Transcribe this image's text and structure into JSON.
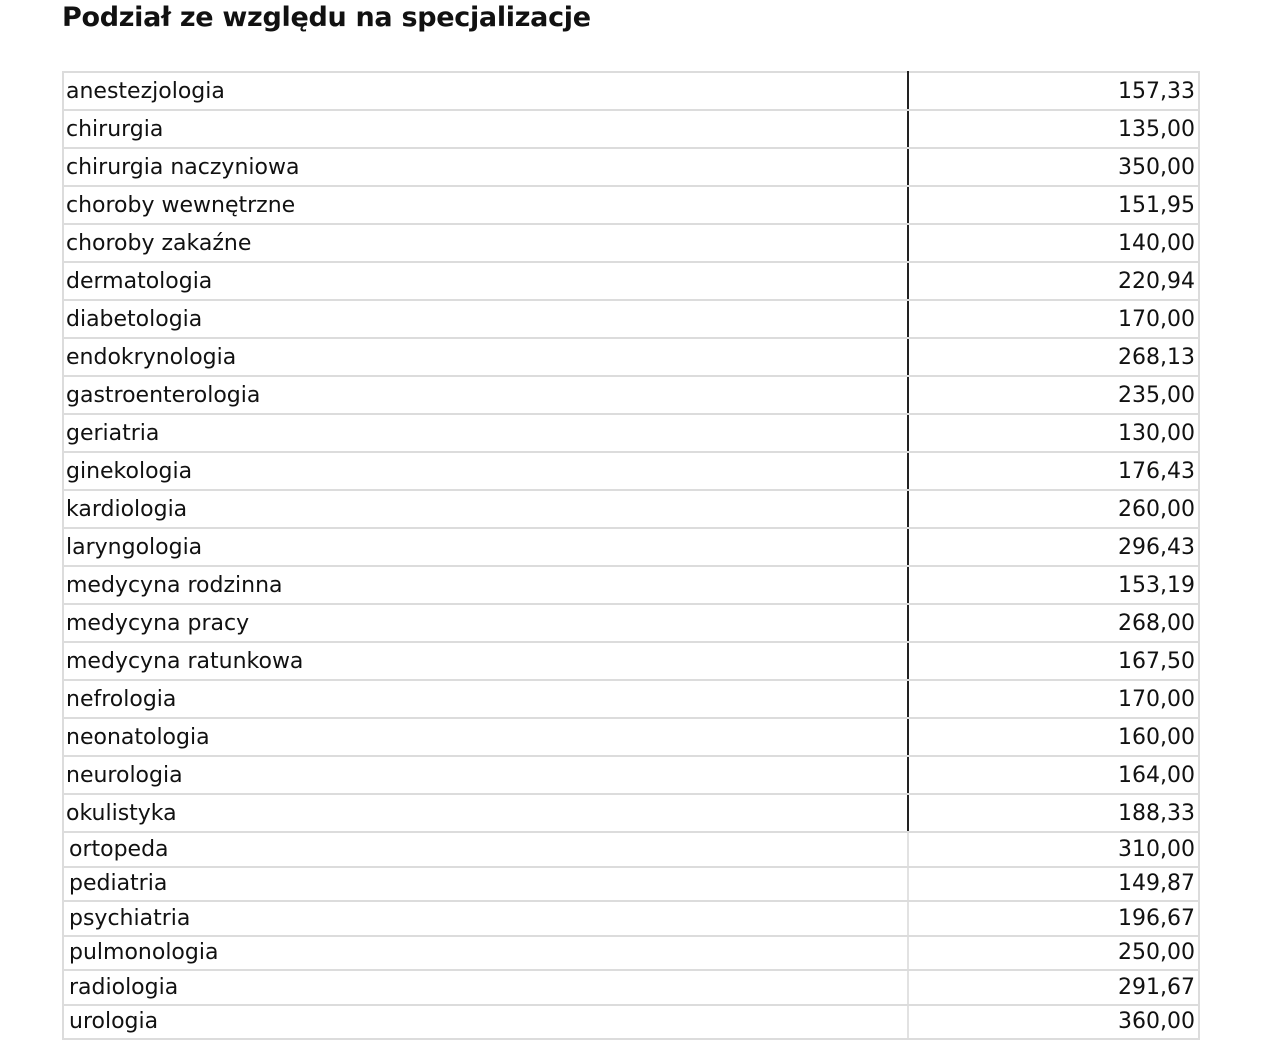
{
  "title": "Podział ze względu na specjalizacje",
  "rows": [
    {
      "name": "anestezjologia",
      "value": "157,33"
    },
    {
      "name": "chirurgia",
      "value": "135,00"
    },
    {
      "name": "chirurgia naczyniowa",
      "value": "350,00"
    },
    {
      "name": "choroby wewnętrzne",
      "value": "151,95"
    },
    {
      "name": "choroby zakaźne",
      "value": "140,00"
    },
    {
      "name": "dermatologia",
      "value": "220,94"
    },
    {
      "name": "diabetologia",
      "value": "170,00"
    },
    {
      "name": "endokrynologia",
      "value": "268,13"
    },
    {
      "name": "gastroenterologia",
      "value": "235,00"
    },
    {
      "name": "geriatria",
      "value": "130,00"
    },
    {
      "name": "ginekologia",
      "value": "176,43"
    },
    {
      "name": "kardiologia",
      "value": "260,00"
    },
    {
      "name": "laryngologia",
      "value": "296,43"
    },
    {
      "name": "medycyna rodzinna",
      "value": "153,19"
    },
    {
      "name": "medycyna pracy",
      "value": "268,00"
    },
    {
      "name": "medycyna ratunkowa",
      "value": "167,50"
    },
    {
      "name": "nefrologia",
      "value": "170,00"
    },
    {
      "name": "neonatologia",
      "value": "160,00"
    },
    {
      "name": "neurologia",
      "value": "164,00"
    },
    {
      "name": "okulistyka",
      "value": "188,33"
    },
    {
      "name": "ortopeda",
      "value": "310,00"
    },
    {
      "name": "pediatria",
      "value": "149,87"
    },
    {
      "name": "psychiatria",
      "value": "196,67"
    },
    {
      "name": "pulmonologia",
      "value": "250,00"
    },
    {
      "name": "radiologia",
      "value": "291,67"
    },
    {
      "name": "urologia",
      "value": "360,00"
    }
  ]
}
